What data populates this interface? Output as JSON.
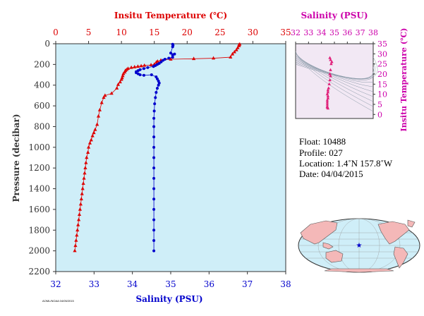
{
  "colors": {
    "temperature": "#dd0000",
    "salinity": "#0000cc",
    "salinity_axis": "#cc00aa",
    "plot_bg": "#cfeef8",
    "axis_text": "#333333",
    "ts_points": "#e0207a",
    "land": "#f4b8b8",
    "ocean": "#cfeef8"
  },
  "chart_data": [
    {
      "type": "scatter",
      "title": "",
      "top_axis_label": "Insitu Temperature (℃)",
      "xlabel": "Salinity (PSU)",
      "ylabel": "Pressure (decibar)",
      "temp_lim": [
        0,
        35
      ],
      "temp_ticks": [
        "0",
        "5",
        "10",
        "15",
        "20",
        "25",
        "30",
        "35"
      ],
      "sal_lim": [
        32,
        38
      ],
      "sal_ticks": [
        "32",
        "33",
        "34",
        "35",
        "36",
        "37",
        "38"
      ],
      "ylim": [
        0,
        2200
      ],
      "y_inverted": true,
      "y_ticks": [
        "0",
        "200",
        "400",
        "600",
        "800",
        "1000",
        "1200",
        "1400",
        "1600",
        "1800",
        "2000",
        "2200"
      ],
      "series": [
        {
          "marker": "triangle",
          "axis": "temperature",
          "points": [
            [
              28.0,
              5
            ],
            [
              27.9,
              10
            ],
            [
              27.9,
              20
            ],
            [
              27.7,
              40
            ],
            [
              27.5,
              60
            ],
            [
              27.2,
              80
            ],
            [
              26.9,
              100
            ],
            [
              26.6,
              130
            ],
            [
              24.0,
              140
            ],
            [
              21.0,
              145
            ],
            [
              17.5,
              150
            ],
            [
              16.0,
              160
            ],
            [
              15.5,
              170
            ],
            [
              15.3,
              180
            ],
            [
              15.0,
              200
            ],
            [
              14.5,
              205
            ],
            [
              13.5,
              210
            ],
            [
              13.0,
              215
            ],
            [
              12.5,
              220
            ],
            [
              12.0,
              225
            ],
            [
              11.5,
              230
            ],
            [
              11.0,
              240
            ],
            [
              10.8,
              250
            ],
            [
              10.6,
              260
            ],
            [
              10.5,
              275
            ],
            [
              10.3,
              290
            ],
            [
              10.2,
              310
            ],
            [
              10.1,
              330
            ],
            [
              10.0,
              345
            ],
            [
              9.8,
              370
            ],
            [
              9.5,
              395
            ],
            [
              9.3,
              430
            ],
            [
              8.5,
              480
            ],
            [
              7.5,
              500
            ],
            [
              7.3,
              520
            ],
            [
              7.0,
              570
            ],
            [
              6.7,
              640
            ],
            [
              6.5,
              700
            ],
            [
              6.3,
              780
            ],
            [
              6.0,
              830
            ],
            [
              5.8,
              860
            ],
            [
              5.6,
              890
            ],
            [
              5.4,
              930
            ],
            [
              5.2,
              960
            ],
            [
              5.0,
              1000
            ],
            [
              4.9,
              1050
            ],
            [
              4.7,
              1100
            ],
            [
              4.6,
              1150
            ],
            [
              4.5,
              1200
            ],
            [
              4.4,
              1250
            ],
            [
              4.3,
              1300
            ],
            [
              4.2,
              1350
            ],
            [
              4.1,
              1400
            ],
            [
              4.0,
              1450
            ],
            [
              3.9,
              1500
            ],
            [
              3.8,
              1550
            ],
            [
              3.7,
              1600
            ],
            [
              3.6,
              1650
            ],
            [
              3.5,
              1700
            ],
            [
              3.4,
              1750
            ],
            [
              3.3,
              1800
            ],
            [
              3.2,
              1850
            ],
            [
              3.1,
              1900
            ],
            [
              3.0,
              1950
            ],
            [
              2.9,
              2000
            ]
          ]
        },
        {
          "marker": "circle",
          "axis": "salinity",
          "points": [
            [
              35.05,
              5
            ],
            [
              35.06,
              15
            ],
            [
              35.05,
              30
            ],
            [
              35.0,
              90
            ],
            [
              35.1,
              100
            ],
            [
              35.05,
              110
            ],
            [
              35.05,
              130
            ],
            [
              34.95,
              140
            ],
            [
              34.85,
              150
            ],
            [
              34.8,
              160
            ],
            [
              34.75,
              175
            ],
            [
              34.7,
              190
            ],
            [
              34.65,
              200
            ],
            [
              34.6,
              210
            ],
            [
              34.55,
              220
            ],
            [
              34.4,
              230
            ],
            [
              34.3,
              240
            ],
            [
              34.2,
              250
            ],
            [
              34.15,
              260
            ],
            [
              34.1,
              270
            ],
            [
              34.1,
              280
            ],
            [
              34.15,
              290
            ],
            [
              34.2,
              300
            ],
            [
              34.3,
              305
            ],
            [
              34.5,
              300
            ],
            [
              34.62,
              320
            ],
            [
              34.65,
              340
            ],
            [
              34.68,
              360
            ],
            [
              34.7,
              380
            ],
            [
              34.68,
              400
            ],
            [
              34.65,
              430
            ],
            [
              34.62,
              470
            ],
            [
              34.6,
              520
            ],
            [
              34.58,
              580
            ],
            [
              34.57,
              650
            ],
            [
              34.56,
              720
            ],
            [
              34.56,
              800
            ],
            [
              34.56,
              900
            ],
            [
              34.56,
              1000
            ],
            [
              34.56,
              1100
            ],
            [
              34.56,
              1200
            ],
            [
              34.56,
              1300
            ],
            [
              34.56,
              1400
            ],
            [
              34.56,
              1500
            ],
            [
              34.56,
              1600
            ],
            [
              34.56,
              1700
            ],
            [
              34.56,
              1800
            ],
            [
              34.56,
              1900
            ],
            [
              34.56,
              2000
            ]
          ]
        }
      ]
    },
    {
      "type": "scatter",
      "title": "Salinity (PSU)",
      "ylabel": "Insitu Temperature (℃)",
      "xlim": [
        32,
        38
      ],
      "x_ticks": [
        "32",
        "33",
        "34",
        "35",
        "36",
        "37",
        "38"
      ],
      "ylim": [
        -2,
        35
      ],
      "y_ticks": [
        "0",
        "5",
        "10",
        "15",
        "20",
        "25",
        "30",
        "35"
      ],
      "points": [
        [
          34.65,
          28
        ],
        [
          34.7,
          27
        ],
        [
          34.8,
          26
        ],
        [
          34.75,
          25
        ],
        [
          34.7,
          22
        ],
        [
          34.65,
          20
        ],
        [
          34.7,
          19
        ],
        [
          34.65,
          17
        ],
        [
          34.6,
          15
        ],
        [
          34.55,
          13
        ],
        [
          34.5,
          12
        ],
        [
          34.5,
          11
        ],
        [
          34.45,
          10
        ],
        [
          34.5,
          9
        ],
        [
          34.5,
          8
        ],
        [
          34.45,
          7
        ],
        [
          34.45,
          6
        ],
        [
          34.45,
          5
        ],
        [
          34.45,
          4
        ],
        [
          34.45,
          3.5
        ],
        [
          34.5,
          3
        ]
      ]
    }
  ],
  "info": {
    "float": "Float:  10488",
    "profile": "Profile:  027",
    "location": "Location:  1.4˚N  157.8˚W",
    "date": "Date:  04/04/2015"
  },
  "map": {
    "marker_lat": 1.4,
    "marker_lon": -157.8
  },
  "footer": "AOML/NOAA 04/05/2015"
}
